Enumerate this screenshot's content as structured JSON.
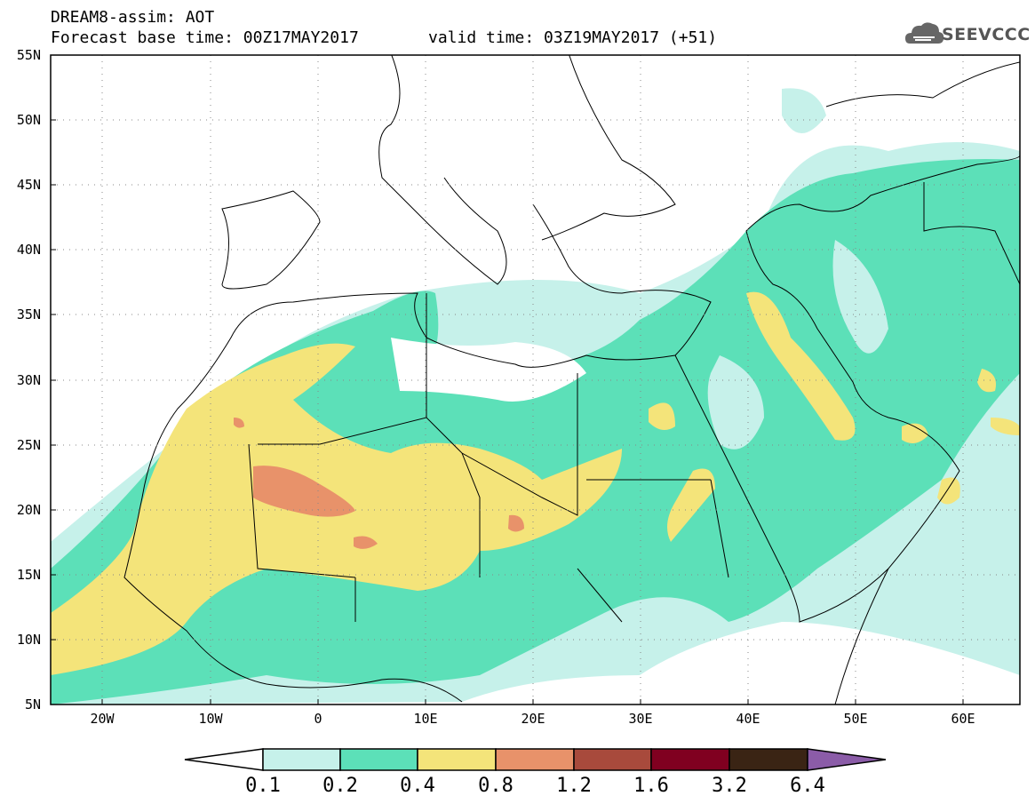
{
  "title": {
    "line1": "DREAM8-assim: AOT",
    "base_time": "Forecast base time: 00Z17MAY2017",
    "valid_time": "valid time: 03Z19MAY2017 (+51)"
  },
  "logo": {
    "text": "SEEVCCC",
    "icon": "cloud-icon",
    "color": "#555555"
  },
  "map": {
    "variable": "AOT",
    "lon_range": [
      -25,
      65
    ],
    "lat_range": [
      5,
      55
    ],
    "lat_labels": [
      "55N",
      "50N",
      "45N",
      "40N",
      "35N",
      "30N",
      "25N",
      "20N",
      "15N",
      "10N",
      "5N"
    ],
    "lon_labels": [
      "20W",
      "10W",
      "0",
      "10E",
      "20E",
      "30E",
      "40E",
      "50E",
      "60E"
    ],
    "grid": "dotted"
  },
  "colorbar": {
    "levels": [
      "0.1",
      "0.2",
      "0.4",
      "0.8",
      "1.2",
      "1.6",
      "3.2",
      "6.4"
    ],
    "colors": [
      "#ffffff",
      "#c6f1ea",
      "#5ce0b8",
      "#f4e47a",
      "#e8926a",
      "#a84a3c",
      "#800020",
      "#3a2414",
      "#8b5ca8"
    ]
  }
}
